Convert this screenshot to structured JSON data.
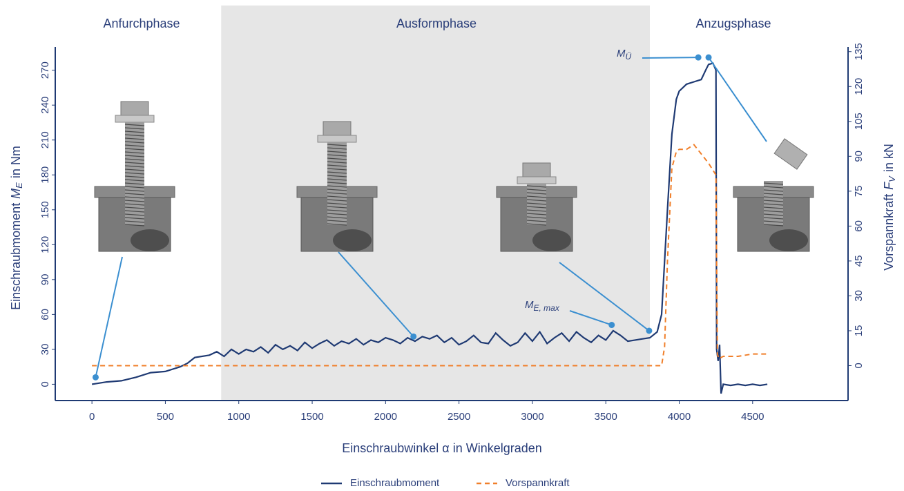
{
  "chart_data": {
    "type": "line",
    "xlabel": "Einschraubwinkel α in Winkelgraden",
    "ylabel": {
      "prefix": "Einschraubmoment",
      "symbol": "M",
      "subscript": "E",
      "suffix": "in Nm"
    },
    "y2label": {
      "prefix": "Vorspannkraft",
      "symbol": "F",
      "subscript": "V",
      "suffix": "in kN"
    },
    "xlim": [
      -250,
      5150
    ],
    "xticks": [
      0,
      500,
      1000,
      1500,
      2000,
      2500,
      3000,
      3500,
      4000,
      4500
    ],
    "ylim": [
      -14,
      290
    ],
    "yticks": [
      0,
      30,
      60,
      90,
      120,
      150,
      180,
      210,
      240,
      270
    ],
    "y2lim": [
      -15,
      137
    ],
    "y2ticks": [
      0,
      15,
      30,
      45,
      60,
      75,
      90,
      105,
      120,
      135
    ],
    "phases": [
      {
        "name": "Anfurchphase"
      },
      {
        "name": "Ausformphase",
        "start": 880,
        "end": 3800,
        "color": "#e6e6e6"
      },
      {
        "name": "Anzugsphase"
      }
    ],
    "series": [
      {
        "name": "Einschraubmoment",
        "color": "#1f3a73",
        "dashed": false,
        "x": [
          0,
          100,
          200,
          300,
          400,
          500,
          600,
          650,
          700,
          800,
          850,
          900,
          950,
          1000,
          1050,
          1100,
          1150,
          1200,
          1250,
          1300,
          1350,
          1400,
          1450,
          1500,
          1550,
          1600,
          1650,
          1700,
          1750,
          1800,
          1850,
          1900,
          1950,
          2000,
          2050,
          2100,
          2150,
          2200,
          2250,
          2300,
          2350,
          2400,
          2450,
          2500,
          2550,
          2600,
          2650,
          2700,
          2750,
          2800,
          2850,
          2900,
          2950,
          3000,
          3050,
          3100,
          3150,
          3200,
          3250,
          3300,
          3350,
          3400,
          3450,
          3500,
          3550,
          3600,
          3650,
          3700,
          3750,
          3800,
          3850,
          3880,
          3920,
          3950,
          3980,
          4000,
          4050,
          4100,
          4150,
          4180,
          4200,
          4230,
          4250,
          4255,
          4265,
          4275,
          4285,
          4300,
          4350,
          4400,
          4450,
          4500,
          4550,
          4600
        ],
        "values": [
          0,
          2,
          3,
          6,
          10,
          11,
          15,
          18,
          23,
          25,
          28,
          24,
          30,
          26,
          30,
          28,
          32,
          27,
          34,
          30,
          33,
          29,
          36,
          31,
          35,
          38,
          33,
          37,
          35,
          39,
          34,
          38,
          36,
          40,
          38,
          35,
          40,
          37,
          41,
          39,
          42,
          36,
          40,
          34,
          37,
          42,
          36,
          35,
          44,
          38,
          33,
          36,
          44,
          37,
          45,
          35,
          40,
          44,
          37,
          45,
          40,
          36,
          42,
          38,
          46,
          42,
          37,
          38,
          39,
          40,
          45,
          60,
          150,
          215,
          245,
          252,
          258,
          260,
          262,
          270,
          275,
          276,
          270,
          30,
          20,
          34,
          -8,
          0,
          -1,
          0,
          -1,
          0,
          -1,
          0
        ]
      },
      {
        "name": "Vorspannkraft",
        "color": "#f07f2a",
        "dashed": true,
        "axis": "y2",
        "x": [
          0,
          3880,
          3900,
          3920,
          3950,
          3980,
          4000,
          4050,
          4100,
          4150,
          4200,
          4250,
          4260,
          4270,
          4300,
          4400,
          4500,
          4600
        ],
        "values": [
          0,
          0,
          8,
          45,
          85,
          92,
          93,
          93,
          95,
          91,
          87,
          82,
          5,
          3,
          4,
          4,
          5,
          5
        ]
      }
    ],
    "markers": [
      {
        "x": 25,
        "y": 6
      },
      {
        "x": 2190,
        "y": 41
      },
      {
        "x": 3795,
        "y": 46
      },
      {
        "x": 3540,
        "y": 51
      },
      {
        "x": 4130,
        "y": 281
      },
      {
        "x": 4200,
        "y": 281
      }
    ],
    "marker_color": "#3b8fd0",
    "annotations": [
      {
        "symbol": "M",
        "subscript": "E, max"
      },
      {
        "symbol": "M",
        "subscript": "Ü"
      }
    ]
  }
}
